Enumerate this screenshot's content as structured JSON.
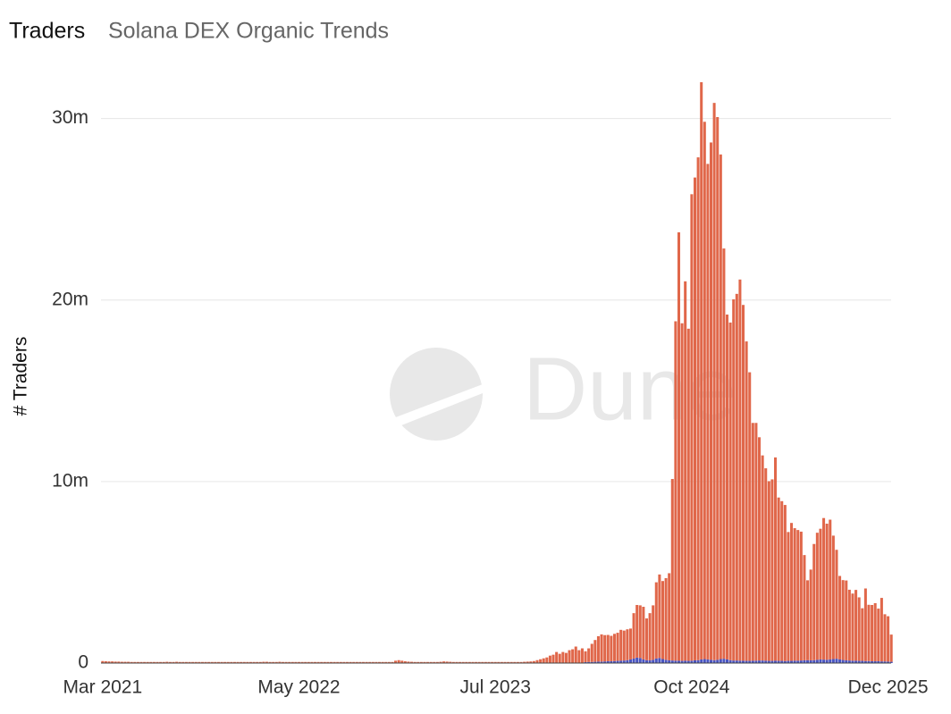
{
  "chart_data": {
    "type": "bar",
    "title": "Traders",
    "subtitle": "Solana DEX Organic Trends",
    "y_label": "# Traders",
    "watermark": "Dune",
    "stacked": true,
    "grid": true,
    "ylim": [
      0,
      32000000
    ],
    "yticks": [
      {
        "value": 0,
        "label": "0"
      },
      {
        "value": 10000000,
        "label": "10m"
      },
      {
        "value": 20000000,
        "label": "20m"
      },
      {
        "value": 30000000,
        "label": "30m"
      }
    ],
    "categories": [
      "Mar 2021",
      null,
      null,
      null,
      null,
      null,
      null,
      null,
      null,
      null,
      null,
      null,
      null,
      null,
      null,
      null,
      null,
      null,
      null,
      null,
      null,
      null,
      null,
      null,
      null,
      null,
      null,
      null,
      null,
      null,
      null,
      null,
      null,
      null,
      null,
      null,
      null,
      null,
      null,
      null,
      null,
      null,
      null,
      null,
      null,
      null,
      null,
      null,
      null,
      null,
      null,
      null,
      null,
      null,
      null,
      null,
      null,
      null,
      null,
      null,
      null,
      "May 2022",
      null,
      null,
      null,
      null,
      null,
      null,
      null,
      null,
      null,
      null,
      null,
      null,
      null,
      null,
      null,
      null,
      null,
      null,
      null,
      null,
      null,
      null,
      null,
      null,
      null,
      null,
      null,
      null,
      null,
      null,
      null,
      null,
      null,
      null,
      null,
      null,
      null,
      null,
      null,
      null,
      null,
      null,
      null,
      null,
      null,
      null,
      null,
      null,
      null,
      null,
      null,
      null,
      null,
      null,
      null,
      null,
      null,
      null,
      null,
      null,
      "Jul 2023",
      null,
      null,
      null,
      null,
      null,
      null,
      null,
      null,
      null,
      null,
      null,
      null,
      null,
      null,
      null,
      null,
      null,
      null,
      null,
      null,
      null,
      null,
      null,
      null,
      null,
      null,
      null,
      null,
      null,
      null,
      null,
      null,
      null,
      null,
      null,
      null,
      null,
      null,
      null,
      null,
      null,
      null,
      null,
      null,
      null,
      null,
      null,
      null,
      null,
      null,
      null,
      null,
      null,
      null,
      null,
      null,
      null,
      null,
      null,
      null,
      "Oct 2024",
      null,
      null,
      null,
      null,
      null,
      null,
      null,
      null,
      null,
      null,
      null,
      null,
      null,
      null,
      null,
      null,
      null,
      null,
      null,
      null,
      null,
      null,
      null,
      null,
      null,
      null,
      null,
      null,
      null,
      null,
      null,
      null,
      null,
      null,
      null,
      null,
      null,
      null,
      null,
      null,
      null,
      null,
      null,
      null,
      null,
      null,
      null,
      null,
      null,
      null,
      null,
      null,
      null,
      null,
      null,
      null,
      null,
      null,
      null,
      null,
      "Dec 2025",
      null
    ],
    "series": [
      {
        "color": "#4a55c0",
        "values": [
          10000.0,
          10000.0,
          10000.0,
          10000.0,
          10000.0,
          10000.0,
          10000.0,
          10000.0,
          10000.0,
          10000.0,
          10000.0,
          10000.0,
          10000.0,
          10000.0,
          10000.0,
          10000.0,
          10000.0,
          10000.0,
          10000.0,
          10000.0,
          10000.0,
          10000.0,
          10000.0,
          10000.0,
          10000.0,
          10000.0,
          10000.0,
          10000.0,
          10000.0,
          10000.0,
          10000.0,
          10000.0,
          10000.0,
          10000.0,
          10000.0,
          10000.0,
          10000.0,
          10000.0,
          10000.0,
          10000.0,
          10000.0,
          10000.0,
          10000.0,
          10000.0,
          10000.0,
          10000.0,
          10000.0,
          10000.0,
          10000.0,
          10000.0,
          10000.0,
          10000.0,
          10000.0,
          10000.0,
          10000.0,
          10000.0,
          10000.0,
          10000.0,
          10000.0,
          10000.0,
          10000.0,
          10000.0,
          10000.0,
          10000.0,
          10000.0,
          10000.0,
          10000.0,
          10000.0,
          10000.0,
          10000.0,
          10000.0,
          10000.0,
          10000.0,
          10000.0,
          10000.0,
          10000.0,
          10000.0,
          10000.0,
          10000.0,
          10000.0,
          10000.0,
          10000.0,
          10000.0,
          10000.0,
          10000.0,
          10000.0,
          10000.0,
          10000.0,
          10000.0,
          10000.0,
          10000.0,
          10000.0,
          10000.0,
          10000.0,
          10000.0,
          10000.0,
          10000.0,
          10000.0,
          10000.0,
          10000.0,
          10000.0,
          10000.0,
          10000.0,
          10000.0,
          10000.0,
          10000.0,
          10000.0,
          10000.0,
          10000.0,
          10000.0,
          10000.0,
          10000.0,
          10000.0,
          10000.0,
          10000.0,
          10000.0,
          10000.0,
          10000.0,
          10000.0,
          10000.0,
          10000.0,
          10000.0,
          10000.0,
          10000.0,
          10000.0,
          10000.0,
          10000.0,
          10000.0,
          10000.0,
          10000.0,
          10000.0,
          10000.0,
          10000.0,
          10000.0,
          10000.0,
          10000.0,
          10000.0,
          10000.0,
          10000.0,
          10000.0,
          10000.0,
          10000.0,
          10000.0,
          10000.0,
          10000.0,
          10000.0,
          10000.0,
          10000.0,
          10000.0,
          10000.0,
          50000.0,
          60000.0,
          60000.0,
          70000.0,
          80000.0,
          80000.0,
          90000.0,
          100000.0,
          100000.0,
          110000.0,
          120000.0,
          130000.0,
          140000.0,
          160000.0,
          200000.0,
          250000.0,
          300000.0,
          280000.0,
          200000.0,
          160000.0,
          150000.0,
          180000.0,
          250000.0,
          280000.0,
          220000.0,
          180000.0,
          150000.0,
          140000.0,
          130000.0,
          130000.0,
          120000.0,
          130000.0,
          120000.0,
          130000.0,
          150000.0,
          160000.0,
          200000.0,
          220000.0,
          200000.0,
          180000.0,
          160000.0,
          180000.0,
          220000.0,
          240000.0,
          200000.0,
          160000.0,
          140000.0,
          140000.0,
          130000.0,
          130000.0,
          120000.0,
          120000.0,
          130000.0,
          130000.0,
          140000.0,
          140000.0,
          130000.0,
          120000.0,
          120000.0,
          130000.0,
          120000.0,
          120000.0,
          110000.0,
          120000.0,
          120000.0,
          130000.0,
          130000.0,
          140000.0,
          150000.0,
          160000.0,
          150000.0,
          160000.0,
          180000.0,
          200000.0,
          190000.0,
          180000.0,
          200000.0,
          220000.0,
          240000.0,
          200000.0,
          170000.0,
          150000.0,
          140000.0,
          130000.0,
          130000.0,
          120000.0,
          120000.0,
          110000.0,
          110000.0,
          100000.0,
          100000.0,
          100000.0,
          90000.0,
          90000.0,
          80000.0,
          70000.0
        ]
      },
      {
        "color": "#e0674a",
        "values": [
          100000.0,
          90000.0,
          80000.0,
          80000.0,
          70000.0,
          70000.0,
          60000.0,
          60000.0,
          60000.0,
          50000.0,
          50000.0,
          50000.0,
          50000.0,
          50000.0,
          50000.0,
          50000.0,
          50000.0,
          50000.0,
          50000.0,
          50000.0,
          60000.0,
          50000.0,
          50000.0,
          60000.0,
          50000.0,
          50000.0,
          50000.0,
          50000.0,
          50000.0,
          50000.0,
          50000.0,
          50000.0,
          50000.0,
          50000.0,
          50000.0,
          50000.0,
          50000.0,
          50000.0,
          50000.0,
          50000.0,
          50000.0,
          50000.0,
          50000.0,
          50000.0,
          50000.0,
          50000.0,
          50000.0,
          50000.0,
          50000.0,
          50000.0,
          60000.0,
          60000.0,
          50000.0,
          50000.0,
          50000.0,
          60000.0,
          50000.0,
          50000.0,
          50000.0,
          50000.0,
          50000.0,
          50000.0,
          50000.0,
          50000.0,
          50000.0,
          50000.0,
          50000.0,
          50000.0,
          50000.0,
          50000.0,
          50000.0,
          50000.0,
          50000.0,
          50000.0,
          50000.0,
          50000.0,
          50000.0,
          50000.0,
          50000.0,
          50000.0,
          50000.0,
          50000.0,
          50000.0,
          50000.0,
          50000.0,
          50000.0,
          50000.0,
          50000.0,
          50000.0,
          50000.0,
          50000.0,
          120000.0,
          150000.0,
          120000.0,
          90000.0,
          70000.0,
          60000.0,
          50000.0,
          50000.0,
          50000.0,
          50000.0,
          50000.0,
          50000.0,
          50000.0,
          50000.0,
          60000.0,
          80000.0,
          70000.0,
          60000.0,
          50000.0,
          50000.0,
          50000.0,
          50000.0,
          50000.0,
          50000.0,
          50000.0,
          50000.0,
          50000.0,
          50000.0,
          50000.0,
          50000.0,
          50000.0,
          50000.0,
          50000.0,
          50000.0,
          50000.0,
          50000.0,
          50000.0,
          50000.0,
          50000.0,
          50000.0,
          60000.0,
          70000.0,
          80000.0,
          100000.0,
          150000.0,
          200000.0,
          250000.0,
          300000.0,
          400000.0,
          450000.0,
          600000.0,
          500000.0,
          600000.0,
          550000.0,
          700000.0,
          750000.0,
          900000.0,
          700000.0,
          800000.0,
          600000.0,
          750000.0,
          1000000.0,
          1200000.0,
          1400000.0,
          1500000.0,
          1450000.0,
          1450000.0,
          1400000.0,
          1500000.0,
          1550000.0,
          1700000.0,
          1650000.0,
          1700000.0,
          1700000.0,
          2500000.0,
          2900000.0,
          2900000.0,
          2900000.0,
          2300000.0,
          2600000.0,
          3000000.0,
          4200000.0,
          4600000.0,
          4300000.0,
          4500000.0,
          4800000.0,
          10000000.0,
          18700000.0,
          23600000.0,
          18600000.0,
          20900000.0,
          18300000.0,
          25700000.0,
          26600000.0,
          27700000.0,
          31800000.0,
          29600000.0,
          27300000.0,
          28500000.0,
          30700000.0,
          29900000.0,
          27800000.0,
          22600000.0,
          19000000.0,
          18600000.0,
          19900000.0,
          20200000.0,
          21000000.0,
          19600000.0,
          17600000.0,
          15900000.0,
          13100000.0,
          13100000.0,
          12300000.0,
          11300000.0,
          10600000.0,
          9900000.0,
          10000000.0,
          11200000.0,
          9000000.0,
          8800000.0,
          8600000.0,
          7100000.0,
          7600000.0,
          7300000.0,
          7200000.0,
          7100000.0,
          5800000.0,
          4400000.0,
          5000000.0,
          6400000.0,
          7000000.0,
          7200000.0,
          7800000.0,
          7500000.0,
          7700000.0,
          6800000.0,
          6000000.0,
          4600000.0,
          4400000.0,
          4400000.0,
          3900000.0,
          3700000.0,
          3900000.0,
          3500000.0,
          2900000.0,
          4000000.0,
          3100000.0,
          3100000.0,
          3200000.0,
          2900000.0,
          3500000.0,
          2600000.0,
          2500000.0,
          1500000.0
        ]
      }
    ]
  }
}
